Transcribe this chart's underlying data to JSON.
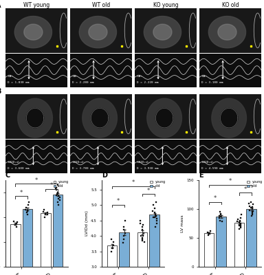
{
  "panel_labels": [
    "A",
    "B",
    "C",
    "D",
    "E"
  ],
  "col_labels_top": [
    "WT young",
    "WT old",
    "KO young",
    "KO old"
  ],
  "la_values": {
    "WT_young": [
      1.83,
      1.6,
      1.7,
      1.75,
      1.8
    ],
    "WT_old": [
      2.28,
      2.1,
      2.3,
      2.4,
      2.25,
      2.5,
      2.6,
      2.2
    ],
    "KO_young": [
      2.22,
      2.0,
      2.1,
      2.3,
      2.15,
      2.2
    ],
    "KO_old": [
      3.18,
      2.5,
      2.7,
      2.9,
      3.0,
      2.8,
      3.1,
      2.6,
      2.75,
      2.85,
      3.0,
      3.2,
      3.3,
      2.95
    ]
  },
  "lvid_values": {
    "WT_young": [
      3.6,
      3.5,
      3.7,
      3.8,
      3.9,
      3.6
    ],
    "WT_old": [
      3.78,
      4.0,
      4.2,
      4.5,
      3.9,
      4.3,
      4.1
    ],
    "KO_young": [
      3.93,
      3.8,
      4.0,
      4.1,
      3.9,
      4.2,
      4.0,
      3.85,
      4.3,
      4.4,
      4.5,
      4.35
    ],
    "KO_old": [
      4.59,
      4.3,
      4.5,
      4.7,
      4.8,
      4.6,
      4.9,
      5.0,
      4.4,
      4.55,
      4.65,
      4.75,
      5.1
    ]
  },
  "lv_mass_values": {
    "WT_young": [
      60,
      55,
      58,
      62,
      57
    ],
    "WT_old": [
      85,
      90,
      95,
      80,
      88,
      92,
      87,
      78
    ],
    "KO_young": [
      70,
      65,
      72,
      68,
      75,
      80,
      85,
      90,
      78,
      73,
      82,
      76
    ],
    "KO_old": [
      95,
      100,
      105,
      90,
      98,
      102,
      108,
      112,
      88,
      93,
      97,
      103,
      110
    ]
  },
  "bar_color_young": "#ffffff",
  "bar_color_old": "#7aaed6",
  "bar_edgecolor": "#333333",
  "background_color": "#ffffff"
}
